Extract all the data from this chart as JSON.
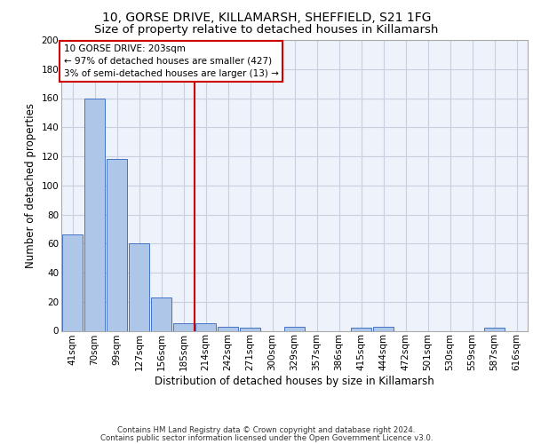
{
  "title_line1": "10, GORSE DRIVE, KILLAMARSH, SHEFFIELD, S21 1FG",
  "title_line2": "Size of property relative to detached houses in Killamarsh",
  "xlabel": "Distribution of detached houses by size in Killamarsh",
  "ylabel": "Number of detached properties",
  "categories": [
    "41sqm",
    "70sqm",
    "99sqm",
    "127sqm",
    "156sqm",
    "185sqm",
    "214sqm",
    "242sqm",
    "271sqm",
    "300sqm",
    "329sqm",
    "357sqm",
    "386sqm",
    "415sqm",
    "444sqm",
    "472sqm",
    "501sqm",
    "530sqm",
    "559sqm",
    "587sqm",
    "616sqm"
  ],
  "values": [
    66,
    160,
    118,
    60,
    23,
    5,
    5,
    3,
    2,
    0,
    3,
    0,
    0,
    2,
    3,
    0,
    0,
    0,
    0,
    2,
    0
  ],
  "bar_color": "#aec6e8",
  "bar_edge_color": "#4472c4",
  "vline_color": "#cc0000",
  "annotation_text": "10 GORSE DRIVE: 203sqm\n← 97% of detached houses are smaller (427)\n3% of semi-detached houses are larger (13) →",
  "annotation_box_color": "#ffffff",
  "annotation_box_edge_color": "#cc0000",
  "ylim": [
    0,
    200
  ],
  "yticks": [
    0,
    20,
    40,
    60,
    80,
    100,
    120,
    140,
    160,
    180,
    200
  ],
  "footnote1": "Contains HM Land Registry data © Crown copyright and database right 2024.",
  "footnote2": "Contains public sector information licensed under the Open Government Licence v3.0.",
  "grid_color": "#c8d0e0",
  "background_color": "#eef2fa",
  "title_fontsize": 10,
  "subtitle_fontsize": 9.5,
  "axis_label_fontsize": 8.5,
  "tick_fontsize": 7.5,
  "annotation_fontsize": 7.5,
  "footnote_fontsize": 6.2
}
